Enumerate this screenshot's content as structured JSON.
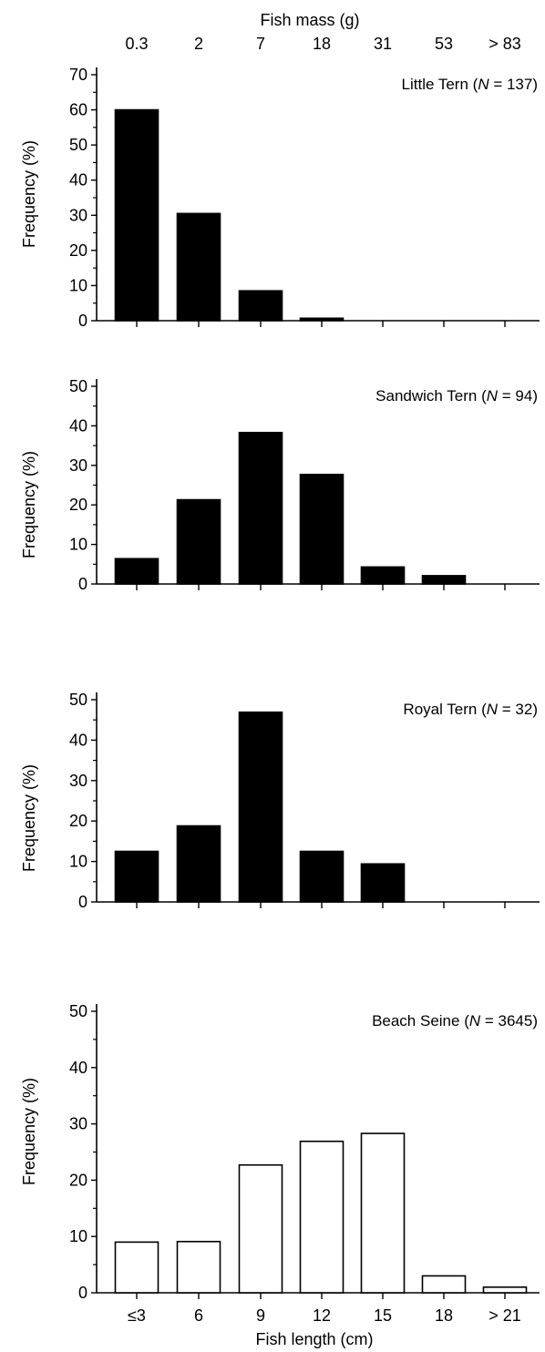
{
  "top_axis": {
    "title": "Fish mass (g)",
    "ticks": [
      "0.3",
      "2",
      "7",
      "18",
      "31",
      "53",
      "> 83"
    ]
  },
  "bottom_axis": {
    "title": "Fish length (cm)",
    "ticks": [
      "≤3",
      "6",
      "9",
      "12",
      "15",
      "18",
      "> 21"
    ]
  },
  "chart_data": [
    {
      "type": "bar",
      "title": "",
      "panel_label_prefix": "Little Tern (",
      "panel_label_n": "N",
      "panel_label_suffix": " = 137)",
      "categories": [
        "≤3",
        "6",
        "9",
        "12",
        "15",
        "18",
        "> 21"
      ],
      "values": [
        60,
        30.5,
        8.5,
        0.7,
        0,
        0,
        0
      ],
      "ylabel": "Frequency (%)",
      "ylim": [
        0,
        70
      ],
      "yticks": [
        0,
        10,
        20,
        30,
        40,
        50,
        60,
        70
      ],
      "fill": "#000000"
    },
    {
      "type": "bar",
      "title": "",
      "panel_label_prefix": "Sandwich Tern (",
      "panel_label_n": "N",
      "panel_label_suffix": " = 94)",
      "categories": [
        "≤3",
        "6",
        "9",
        "12",
        "15",
        "18",
        "> 21"
      ],
      "values": [
        6.4,
        21.3,
        38.3,
        27.7,
        4.3,
        2.1,
        0
      ],
      "ylabel": "Frequency (%)",
      "ylim": [
        0,
        50
      ],
      "yticks": [
        0,
        10,
        20,
        30,
        40,
        50
      ],
      "fill": "#000000"
    },
    {
      "type": "bar",
      "title": "",
      "panel_label_prefix": "Royal Tern (",
      "panel_label_n": "N",
      "panel_label_suffix": " = 32)",
      "categories": [
        "≤3",
        "6",
        "9",
        "12",
        "15",
        "18",
        "> 21"
      ],
      "values": [
        12.5,
        18.8,
        46.9,
        12.5,
        9.4,
        0,
        0
      ],
      "ylabel": "Frequency (%)",
      "ylim": [
        0,
        50
      ],
      "yticks": [
        0,
        10,
        20,
        30,
        40,
        50
      ],
      "fill": "#000000"
    },
    {
      "type": "bar",
      "title": "",
      "panel_label_prefix": "Beach Seine (",
      "panel_label_n": "N",
      "panel_label_suffix": " = 3645)",
      "categories": [
        "≤3",
        "6",
        "9",
        "12",
        "15",
        "18",
        "> 21"
      ],
      "values": [
        9,
        9.1,
        22.7,
        26.9,
        28.3,
        3,
        1
      ],
      "ylabel": "Frequency (%)",
      "ylim": [
        0,
        50
      ],
      "yticks": [
        0,
        10,
        20,
        30,
        40,
        50
      ],
      "fill": "#ffffff"
    }
  ]
}
